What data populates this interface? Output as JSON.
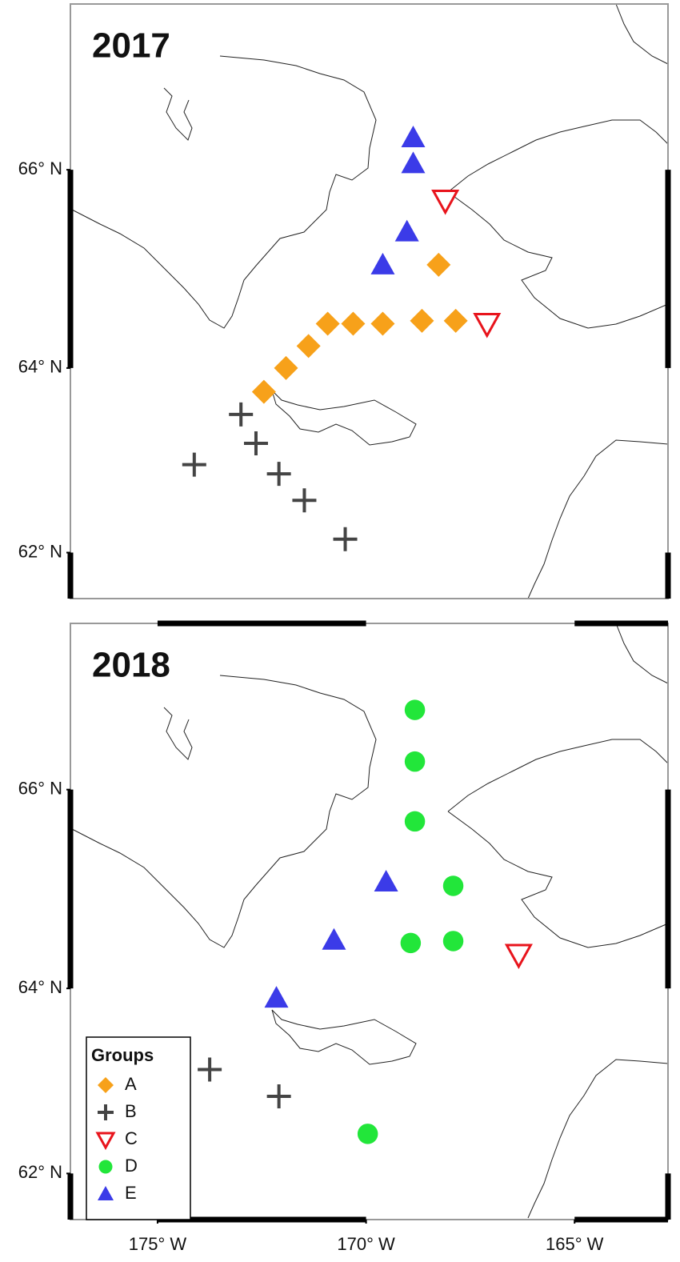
{
  "chart_data": [
    {
      "type": "scatter",
      "title": "2017",
      "projection": "mercator",
      "xlim": [
        -177.09,
        -162.76
      ],
      "ylim": [
        61.48,
        67.56
      ],
      "yticks": [
        {
          "value": 62,
          "label": "62° N"
        },
        {
          "value": 64,
          "label": "64° N"
        },
        {
          "value": 66,
          "label": "66° N"
        }
      ],
      "series": [
        {
          "color": "#f7a11a",
          "marker": "diamond",
          "x": [
            -168.26,
            -172.45,
            -171.92,
            -171.38,
            -170.92,
            -170.31,
            -169.6,
            -168.66,
            -167.85
          ],
          "y": [
            65.06,
            63.75,
            64.0,
            64.23,
            64.46,
            64.46,
            64.46,
            64.49,
            64.49
          ]
        },
        {
          "color": "#444444",
          "marker": "plus",
          "x": [
            -173.0,
            -172.64,
            -174.12,
            -172.09,
            -171.48,
            -170.5
          ],
          "y": [
            63.51,
            63.2,
            62.97,
            62.87,
            62.58,
            62.15
          ]
        },
        {
          "color": "#e8141c",
          "marker": "triangle-down",
          "x": [
            -168.1,
            -167.1
          ],
          "y": [
            65.7,
            64.46
          ]
        },
        {
          "color": "#3b3be8",
          "marker": "triangle-up",
          "x": [
            -168.87,
            -168.87,
            -169.02,
            -169.6
          ],
          "y": [
            66.31,
            66.06,
            65.39,
            65.06
          ]
        }
      ]
    },
    {
      "type": "scatter",
      "title": "2018",
      "projection": "mercator",
      "xlim": [
        -177.09,
        -162.76
      ],
      "ylim": [
        61.48,
        67.56
      ],
      "xticks": [
        {
          "value": -175,
          "label": "175° W"
        },
        {
          "value": -170,
          "label": "170° W"
        },
        {
          "value": -165,
          "label": "165° W"
        }
      ],
      "yticks": [
        {
          "value": 62,
          "label": "62° N"
        },
        {
          "value": 64,
          "label": "64° N"
        },
        {
          "value": 66,
          "label": "66° N"
        }
      ],
      "legend": "lower left",
      "legend_title": "Groups",
      "series": [
        {
          "name": "A",
          "color": "#f7a11a",
          "marker": "diamond",
          "x": [],
          "y": []
        },
        {
          "name": "B",
          "color": "#444444",
          "marker": "plus",
          "x": [
            -173.75,
            -172.09
          ],
          "y": [
            63.14,
            62.85
          ]
        },
        {
          "name": "C",
          "color": "#e8141c",
          "marker": "triangle-down",
          "x": [
            -166.34
          ],
          "y": [
            64.35
          ]
        },
        {
          "name": "D",
          "color": "#22e63a",
          "marker": "circle",
          "x": [
            -168.83,
            -168.83,
            -168.83,
            -167.91,
            -167.91,
            -168.93,
            -169.96
          ],
          "y": [
            66.76,
            66.27,
            65.69,
            65.05,
            64.49,
            64.47,
            62.44
          ]
        },
        {
          "name": "E",
          "color": "#3b3be8",
          "marker": "triangle-up",
          "x": [
            -169.52,
            -170.77,
            -172.15
          ],
          "y": [
            65.09,
            64.5,
            63.9
          ]
        }
      ]
    }
  ]
}
